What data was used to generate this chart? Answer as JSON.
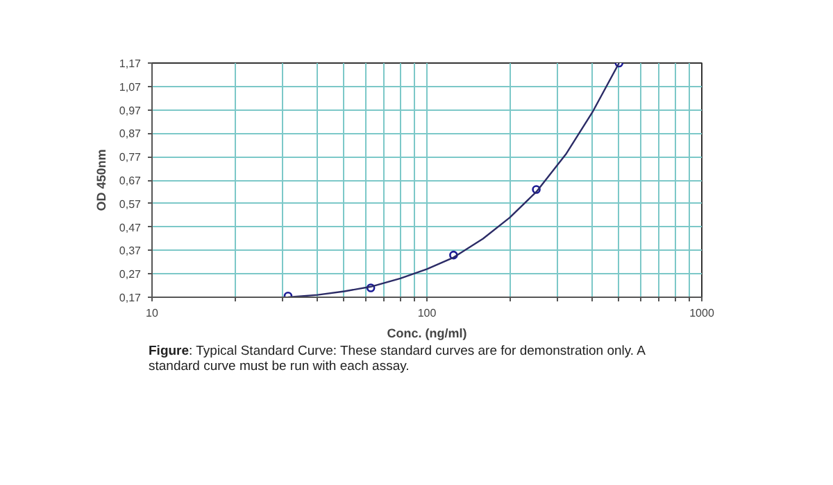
{
  "chart_data": {
    "type": "scatter",
    "xlabel": "Conc. (ng/ml)",
    "ylabel": "OD 450nm",
    "log": "x",
    "grid": true,
    "line_style": "solid",
    "xlim": [
      10,
      1000
    ],
    "ylim": [
      0.17,
      1.17
    ],
    "xticks": [
      10,
      {
        "value": 20,
        "label": null
      },
      {
        "value": 30,
        "label": null
      },
      {
        "value": 40,
        "label": null
      },
      {
        "value": 50,
        "label": null
      },
      {
        "value": 60,
        "label": null
      },
      {
        "value": 70,
        "label": null
      },
      {
        "value": 80,
        "label": null
      },
      {
        "value": 90,
        "label": null
      },
      100,
      {
        "value": 200,
        "label": null
      },
      {
        "value": 300,
        "label": null
      },
      {
        "value": 400,
        "label": null
      },
      {
        "value": 500,
        "label": null
      },
      {
        "value": 600,
        "label": null
      },
      {
        "value": 700,
        "label": null
      },
      {
        "value": 800,
        "label": null
      },
      {
        "value": 900,
        "label": null
      },
      1000
    ],
    "yticks": [
      {
        "value": 0.17,
        "label": "0,17"
      },
      {
        "value": 0.27,
        "label": "0,27"
      },
      {
        "value": 0.37,
        "label": "0,37"
      },
      {
        "value": 0.47,
        "label": "0,47"
      },
      {
        "value": 0.57,
        "label": "0,57"
      },
      {
        "value": 0.67,
        "label": "0,67"
      },
      {
        "value": 0.77,
        "label": "0,77"
      },
      {
        "value": 0.87,
        "label": "0,87"
      },
      {
        "value": 0.97,
        "label": "0,97"
      },
      {
        "value": 1.07,
        "label": "1,07"
      },
      {
        "value": 1.17,
        "label": "1,17"
      }
    ],
    "series": [
      {
        "color": "#1c1c96",
        "marker": "circle",
        "x": [
          31.25,
          62.5,
          125,
          250,
          500
        ],
        "values": [
          0.175,
          0.21,
          0.35,
          0.63,
          1.17
        ]
      },
      {
        "type": "line",
        "color": "#2b2b66",
        "x": [
          31.25,
          40,
          50,
          62.5,
          80,
          100,
          125,
          160,
          200,
          250,
          320,
          400,
          500
        ],
        "values": [
          0.17,
          0.18,
          0.195,
          0.215,
          0.25,
          0.29,
          0.34,
          0.42,
          0.51,
          0.62,
          0.78,
          0.96,
          1.17
        ]
      }
    ],
    "annotations": [
      "Figure: Typical Standard Curve: These standard curves are for demonstration only. A standard curve must be run with each assay."
    ]
  }
}
